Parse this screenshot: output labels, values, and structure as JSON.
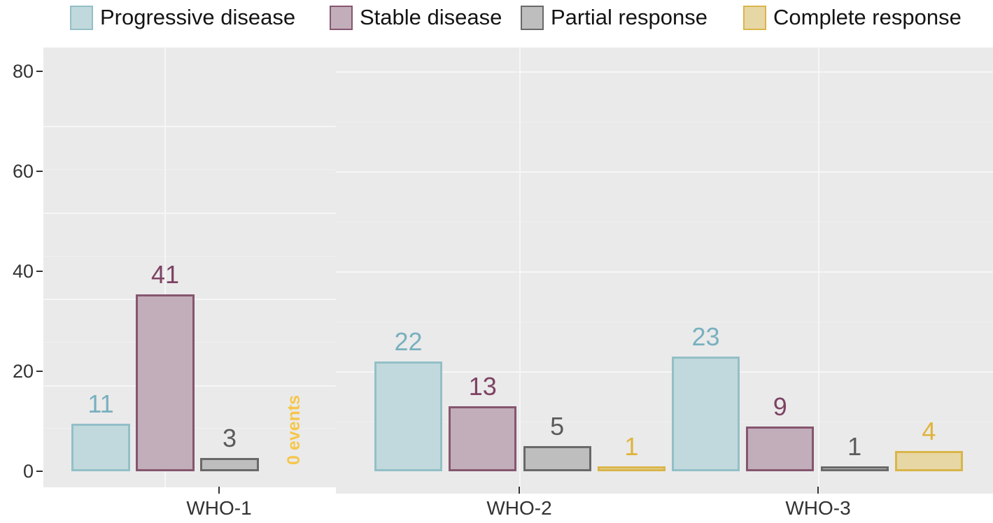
{
  "legend": {
    "items": [
      {
        "label": "Progressive disease",
        "fill": "#c1d9dc",
        "border": "#93bfc7",
        "value_color": "#79b0bf"
      },
      {
        "label": "Stable disease",
        "fill": "#c2aeba",
        "border": "#85566f",
        "value_color": "#7d4263"
      },
      {
        "label": "Partial response",
        "fill": "#bebebe",
        "border": "#696969",
        "value_color": "#5a5a5a"
      },
      {
        "label": "Complete response",
        "fill": "#e7d7a5",
        "border": "#d9b54a",
        "value_color": "#e0b33b"
      }
    ]
  },
  "axes": {
    "y_tick_labels": [
      "0",
      "20",
      "40",
      "60",
      "80"
    ],
    "x_labels": [
      "WHO-1",
      "WHO-2",
      "WHO-3"
    ]
  },
  "chart_data": {
    "type": "bar",
    "title": "",
    "xlabel": "",
    "ylabel": "",
    "categories": [
      "WHO-1",
      "WHO-2",
      "WHO-3"
    ],
    "series": [
      {
        "name": "Progressive disease",
        "values": [
          11,
          22,
          23
        ]
      },
      {
        "name": "Stable disease",
        "values": [
          41,
          13,
          9
        ]
      },
      {
        "name": "Partial response",
        "values": [
          3,
          5,
          1
        ]
      },
      {
        "name": "Complete response",
        "values": [
          0,
          1,
          4
        ]
      }
    ],
    "annotations": [
      {
        "text": "0 events",
        "category": "WHO-1",
        "series": "Complete response",
        "rotation": -90,
        "color": "#f6c64b"
      }
    ],
    "ylim": [
      0,
      80
    ],
    "y_ticks": [
      0,
      20,
      40,
      60,
      80
    ],
    "grid": true,
    "legend_position": "top",
    "value_labels": true,
    "panel_background": "#eaeaea"
  }
}
